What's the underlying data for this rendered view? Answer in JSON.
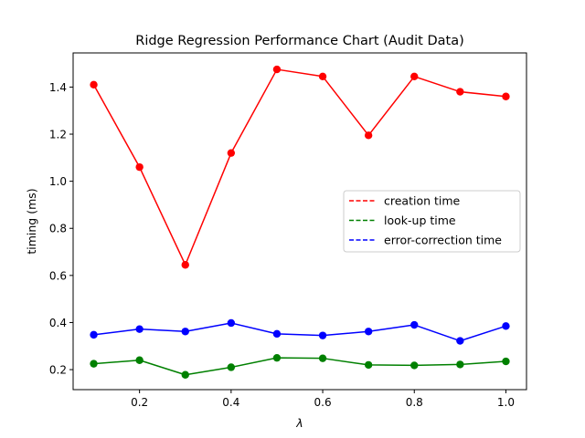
{
  "chart_data": {
    "type": "line",
    "title": "Ridge Regression Performance Chart (Audit Data)",
    "xlabel": "λ",
    "ylabel": "timing (ms)",
    "x": [
      0.1,
      0.2,
      0.3,
      0.4,
      0.5,
      0.6,
      0.7,
      0.8,
      0.9,
      1.0
    ],
    "xlim": [
      0.055,
      1.045
    ],
    "ylim": [
      0.115,
      1.545
    ],
    "xticks": [
      0.2,
      0.4,
      0.6,
      0.8,
      1.0
    ],
    "xtick_labels": [
      "0.2",
      "0.4",
      "0.6",
      "0.8",
      "1.0"
    ],
    "yticks": [
      0.2,
      0.4,
      0.6,
      0.8,
      1.0,
      1.2,
      1.4
    ],
    "ytick_labels": [
      "0.2",
      "0.4",
      "0.6",
      "0.8",
      "1.0",
      "1.2",
      "1.4"
    ],
    "grid": false,
    "legend_position": "center-right",
    "series": [
      {
        "name": "creation time",
        "color": "#ff0000",
        "values": [
          1.41,
          1.06,
          0.645,
          1.12,
          1.475,
          1.445,
          1.195,
          1.445,
          1.38,
          1.36
        ]
      },
      {
        "name": "look-up time",
        "color": "#008000",
        "values": [
          0.225,
          0.24,
          0.178,
          0.21,
          0.25,
          0.248,
          0.22,
          0.218,
          0.222,
          0.235
        ]
      },
      {
        "name": "error-correction time",
        "color": "#0000ff",
        "values": [
          0.348,
          0.372,
          0.362,
          0.398,
          0.352,
          0.345,
          0.362,
          0.39,
          0.322,
          0.385
        ]
      }
    ]
  }
}
